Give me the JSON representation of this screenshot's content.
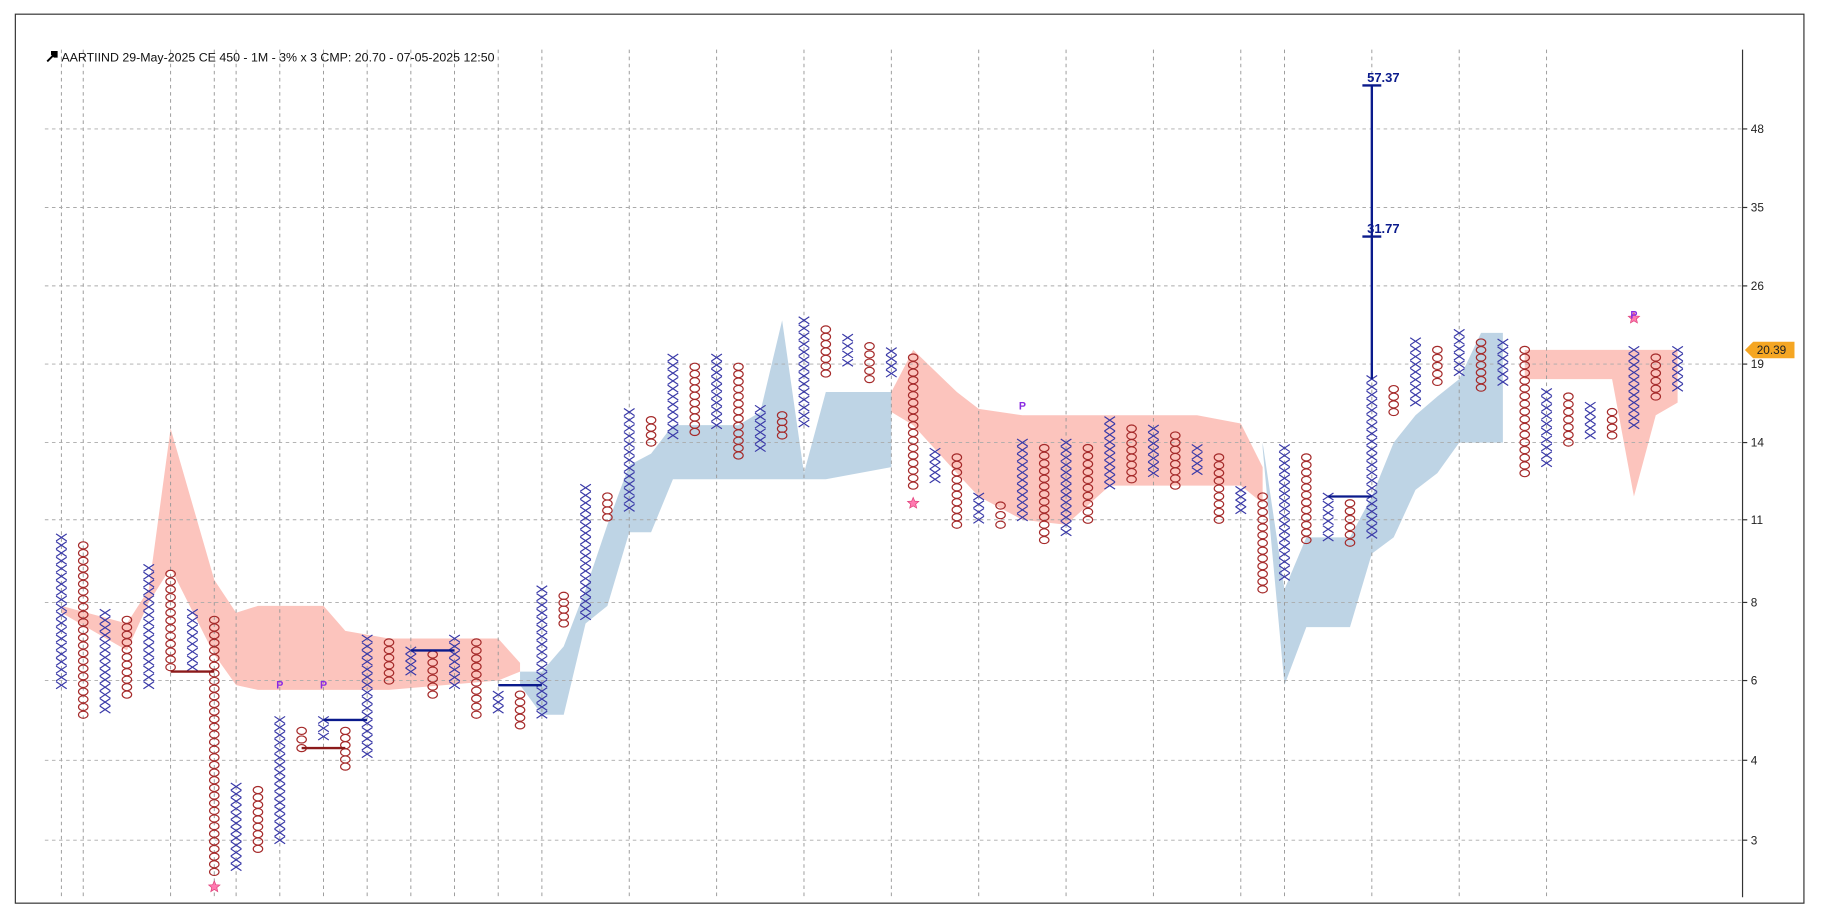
{
  "chart_data": {
    "type": "point-and-figure",
    "title": "AARTIIND 29-May-2025 CE 450 - 1M - 3% x 3 CMP: 20.70 - 07-05-2025 12:50",
    "log_scale": true,
    "grid": true,
    "ylim": [
      2.4,
      66
    ],
    "yticks": [
      {
        "value": 3.0,
        "label": "3"
      },
      {
        "value": 4.1,
        "label": "4"
      },
      {
        "value": 5.6,
        "label": "6"
      },
      {
        "value": 7.6,
        "label": "8"
      },
      {
        "value": 10.5,
        "label": "11"
      },
      {
        "value": 14.2,
        "label": "14"
      },
      {
        "value": 19.3,
        "label": "19"
      },
      {
        "value": 26.2,
        "label": "26"
      },
      {
        "value": 35.6,
        "label": "35"
      },
      {
        "value": 48.4,
        "label": "48"
      }
    ],
    "x_color": "#3a3aa8",
    "o_color": "#a52a2a",
    "columns": [
      {
        "kind": "X",
        "low": 5.5,
        "high": 9.8
      },
      {
        "kind": "O",
        "low": 4.9,
        "high": 9.5
      },
      {
        "kind": "X",
        "low": 5.0,
        "high": 7.3
      },
      {
        "kind": "O",
        "low": 5.3,
        "high": 7.1
      },
      {
        "kind": "X",
        "low": 5.5,
        "high": 8.7
      },
      {
        "kind": "O",
        "low": 5.9,
        "high": 8.5
      },
      {
        "kind": "X",
        "low": 5.9,
        "high": 7.3
      },
      {
        "kind": "O",
        "low": 2.65,
        "high": 7.1
      },
      {
        "kind": "X",
        "low": 2.7,
        "high": 3.7
      },
      {
        "kind": "O",
        "low": 2.9,
        "high": 3.65
      },
      {
        "kind": "X",
        "low": 3.0,
        "high": 4.8
      },
      {
        "kind": "O",
        "low": 4.3,
        "high": 4.6
      },
      {
        "kind": "X",
        "low": 4.5,
        "high": 4.8
      },
      {
        "kind": "O",
        "low": 4.0,
        "high": 4.6
      },
      {
        "kind": "X",
        "low": 4.2,
        "high": 6.6
      },
      {
        "kind": "O",
        "low": 5.6,
        "high": 6.5
      },
      {
        "kind": "X",
        "low": 5.8,
        "high": 6.3
      },
      {
        "kind": "O",
        "low": 5.3,
        "high": 6.2
      },
      {
        "kind": "X",
        "low": 5.5,
        "high": 6.6
      },
      {
        "kind": "O",
        "low": 4.9,
        "high": 6.5
      },
      {
        "kind": "X",
        "low": 5.0,
        "high": 5.3
      },
      {
        "kind": "O",
        "low": 4.7,
        "high": 5.3
      },
      {
        "kind": "X",
        "low": 4.9,
        "high": 8.0
      },
      {
        "kind": "O",
        "low": 7.0,
        "high": 7.8
      },
      {
        "kind": "X",
        "low": 7.2,
        "high": 11.9
      },
      {
        "kind": "O",
        "low": 10.6,
        "high": 11.5
      },
      {
        "kind": "X",
        "low": 11.0,
        "high": 16.0
      },
      {
        "kind": "O",
        "low": 14.2,
        "high": 15.5
      },
      {
        "kind": "X",
        "low": 14.6,
        "high": 19.8
      },
      {
        "kind": "O",
        "low": 14.8,
        "high": 19.1
      },
      {
        "kind": "X",
        "low": 15.2,
        "high": 19.8
      },
      {
        "kind": "O",
        "low": 13.5,
        "high": 19.1
      },
      {
        "kind": "X",
        "low": 13.9,
        "high": 16.2
      },
      {
        "kind": "O",
        "low": 14.6,
        "high": 15.8
      },
      {
        "kind": "X",
        "low": 15.3,
        "high": 22.9
      },
      {
        "kind": "O",
        "low": 18.6,
        "high": 22.1
      },
      {
        "kind": "X",
        "low": 19.4,
        "high": 21.4
      },
      {
        "kind": "O",
        "low": 18.2,
        "high": 20.7
      },
      {
        "kind": "X",
        "low": 18.6,
        "high": 20.3
      },
      {
        "kind": "O",
        "low": 12.0,
        "high": 19.8
      },
      {
        "kind": "X",
        "low": 12.3,
        "high": 13.7
      },
      {
        "kind": "O",
        "low": 10.3,
        "high": 13.4
      },
      {
        "kind": "X",
        "low": 10.5,
        "high": 11.5
      },
      {
        "kind": "O",
        "low": 10.3,
        "high": 11.1
      },
      {
        "kind": "X",
        "low": 10.6,
        "high": 14.2
      },
      {
        "kind": "O",
        "low": 9.7,
        "high": 13.9
      },
      {
        "kind": "X",
        "low": 10.0,
        "high": 14.2
      },
      {
        "kind": "O",
        "low": 10.5,
        "high": 13.9
      },
      {
        "kind": "X",
        "low": 12.0,
        "high": 15.5
      },
      {
        "kind": "O",
        "low": 12.3,
        "high": 15.0
      },
      {
        "kind": "X",
        "low": 12.6,
        "high": 15.0
      },
      {
        "kind": "O",
        "low": 12.0,
        "high": 14.6
      },
      {
        "kind": "X",
        "low": 12.7,
        "high": 13.9
      },
      {
        "kind": "O",
        "low": 10.5,
        "high": 13.4
      },
      {
        "kind": "X",
        "low": 10.9,
        "high": 11.8
      },
      {
        "kind": "O",
        "low": 8.0,
        "high": 11.5
      },
      {
        "kind": "X",
        "low": 8.4,
        "high": 13.9
      },
      {
        "kind": "O",
        "low": 9.7,
        "high": 13.4
      },
      {
        "kind": "X",
        "low": 9.8,
        "high": 11.5
      },
      {
        "kind": "O",
        "low": 9.6,
        "high": 11.2
      },
      {
        "kind": "X",
        "low": 9.9,
        "high": 18.2
      },
      {
        "kind": "O",
        "low": 16.0,
        "high": 17.5
      },
      {
        "kind": "X",
        "low": 16.6,
        "high": 21.1
      },
      {
        "kind": "O",
        "low": 18.0,
        "high": 20.4
      },
      {
        "kind": "X",
        "low": 18.7,
        "high": 21.8
      },
      {
        "kind": "O",
        "low": 17.6,
        "high": 21.0
      },
      {
        "kind": "X",
        "low": 18.0,
        "high": 21.0
      },
      {
        "kind": "O",
        "low": 12.6,
        "high": 20.4
      },
      {
        "kind": "X",
        "low": 13.1,
        "high": 17.3
      },
      {
        "kind": "O",
        "low": 14.2,
        "high": 17.0
      },
      {
        "kind": "X",
        "low": 14.6,
        "high": 16.4
      },
      {
        "kind": "O",
        "low": 14.6,
        "high": 16.0
      },
      {
        "kind": "X",
        "low": 15.2,
        "high": 20.4
      },
      {
        "kind": "O",
        "low": 17.0,
        "high": 19.8
      },
      {
        "kind": "X",
        "low": 17.6,
        "high": 20.4
      }
    ],
    "clouds": [
      {
        "color": "#fbbab2",
        "points": [
          [
            0,
            7.3,
            7.5
          ],
          [
            3,
            6.3,
            7.0
          ],
          [
            4,
            7.6,
            8.0
          ],
          [
            5,
            8.7,
            15.0
          ],
          [
            7,
            6.2,
            8.3
          ],
          [
            8,
            5.5,
            7.3
          ],
          [
            9,
            5.4,
            7.5
          ],
          [
            12,
            5.4,
            7.5
          ],
          [
            13,
            5.4,
            6.8
          ],
          [
            15,
            5.4,
            6.6
          ],
          [
            20,
            5.6,
            6.6
          ],
          [
            21,
            5.8,
            6.0
          ]
        ]
      },
      {
        "color": "#fbbab2",
        "points": [
          [
            38,
            16.0,
            17.3
          ],
          [
            39,
            15.2,
            20.4
          ],
          [
            41,
            12.6,
            17.3
          ],
          [
            42,
            11.5,
            16.2
          ],
          [
            44,
            10.5,
            15.8
          ],
          [
            46,
            10.3,
            15.8
          ],
          [
            48,
            12.0,
            15.8
          ],
          [
            49,
            12.0,
            15.8
          ],
          [
            52,
            12.0,
            15.8
          ],
          [
            54,
            12.0,
            15.3
          ],
          [
            55,
            11.2,
            12.9
          ]
        ]
      },
      {
        "color": "#fbbab2",
        "points": [
          [
            67,
            18.2,
            20.4
          ],
          [
            71,
            18.2,
            20.4
          ],
          [
            72,
            11.5,
            20.4
          ],
          [
            73,
            15.8,
            20.4
          ],
          [
            74,
            16.6,
            20.4
          ]
        ]
      },
      {
        "color": "#b3cde0",
        "points": [
          [
            21,
            5.5,
            5.8
          ],
          [
            22,
            4.9,
            5.8
          ],
          [
            23,
            4.9,
            6.4
          ],
          [
            24,
            7.0,
            8.0
          ],
          [
            25,
            7.5,
            10.3
          ],
          [
            26,
            10.0,
            13.0
          ],
          [
            27,
            10.0,
            13.6
          ],
          [
            28,
            12.3,
            15.2
          ],
          [
            31,
            12.3,
            15.2
          ],
          [
            32,
            12.3,
            16.0
          ],
          [
            33,
            12.3,
            22.9
          ],
          [
            34,
            12.3,
            12.6
          ],
          [
            35,
            12.3,
            17.3
          ],
          [
            38,
            12.9,
            17.3
          ]
        ]
      },
      {
        "color": "#b3cde0",
        "points": [
          [
            55,
            13.9,
            14.2
          ],
          [
            56,
            5.5,
            8.0
          ],
          [
            57,
            6.9,
            9.8
          ],
          [
            59,
            6.9,
            9.8
          ],
          [
            60,
            9.2,
            11.5
          ],
          [
            61,
            9.8,
            14.2
          ],
          [
            62,
            11.8,
            15.8
          ],
          [
            63,
            12.6,
            17.0
          ],
          [
            64,
            14.2,
            18.2
          ],
          [
            65,
            14.2,
            21.8
          ],
          [
            66,
            14.2,
            21.8
          ]
        ]
      }
    ],
    "support_lines": [
      {
        "value": 5.8,
        "color": "#8b1a1a",
        "start": 5,
        "end": 7
      },
      {
        "value": 4.3,
        "color": "#8b1a1a",
        "start": 11,
        "end": 13
      },
      {
        "value": 4.8,
        "color": "#0a1a8c",
        "start": 12,
        "end": 14
      },
      {
        "value": 6.3,
        "color": "#0a1a8c",
        "start": 16,
        "end": 18
      },
      {
        "value": 5.5,
        "color": "#0a1a8c",
        "start": 20,
        "end": 22
      },
      {
        "value": 11.5,
        "color": "#0a1a8c",
        "start": 58,
        "end": 60
      }
    ],
    "target": {
      "column": 60,
      "color": "#0a1a8c",
      "values": [
        57.37,
        31.77
      ]
    },
    "stars": [
      {
        "column": 7,
        "value": 2.5
      },
      {
        "column": 39,
        "value": 11.2
      },
      {
        "column": 72,
        "value": 23.1
      }
    ],
    "p_markers": [
      {
        "column": 10,
        "value": 5.5,
        "label": "P"
      },
      {
        "column": 12,
        "value": 5.5,
        "label": "P"
      },
      {
        "column": 44,
        "value": 16.4,
        "label": "P"
      },
      {
        "column": 72,
        "value": 23.4,
        "label": "P"
      }
    ],
    "last_price": 20.39
  }
}
